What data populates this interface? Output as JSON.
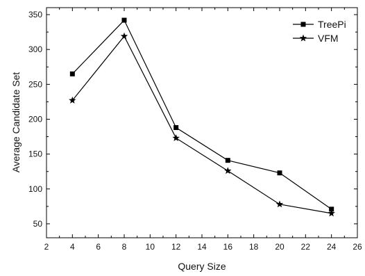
{
  "chart_data": {
    "type": "line",
    "title": "",
    "xlabel": "Query Size",
    "ylabel": "Average Candidate Set",
    "xlim": [
      2,
      26
    ],
    "ylim": [
      30,
      360
    ],
    "xticks": [
      2,
      4,
      6,
      8,
      10,
      12,
      14,
      16,
      18,
      20,
      22,
      24,
      26
    ],
    "yticks": [
      50,
      100,
      150,
      200,
      250,
      300,
      350
    ],
    "grid": false,
    "legend_position": "top-right",
    "x": [
      4,
      8,
      12,
      16,
      20,
      24
    ],
    "series": [
      {
        "name": "TreePi",
        "marker": "square",
        "values": [
          265,
          342,
          188,
          141,
          123,
          71
        ]
      },
      {
        "name": "VFM",
        "marker": "star",
        "values": [
          227,
          319,
          173,
          126,
          78,
          65
        ]
      }
    ],
    "colors": {
      "line": "#000000",
      "axis": "#000000",
      "background": "#ffffff"
    }
  }
}
